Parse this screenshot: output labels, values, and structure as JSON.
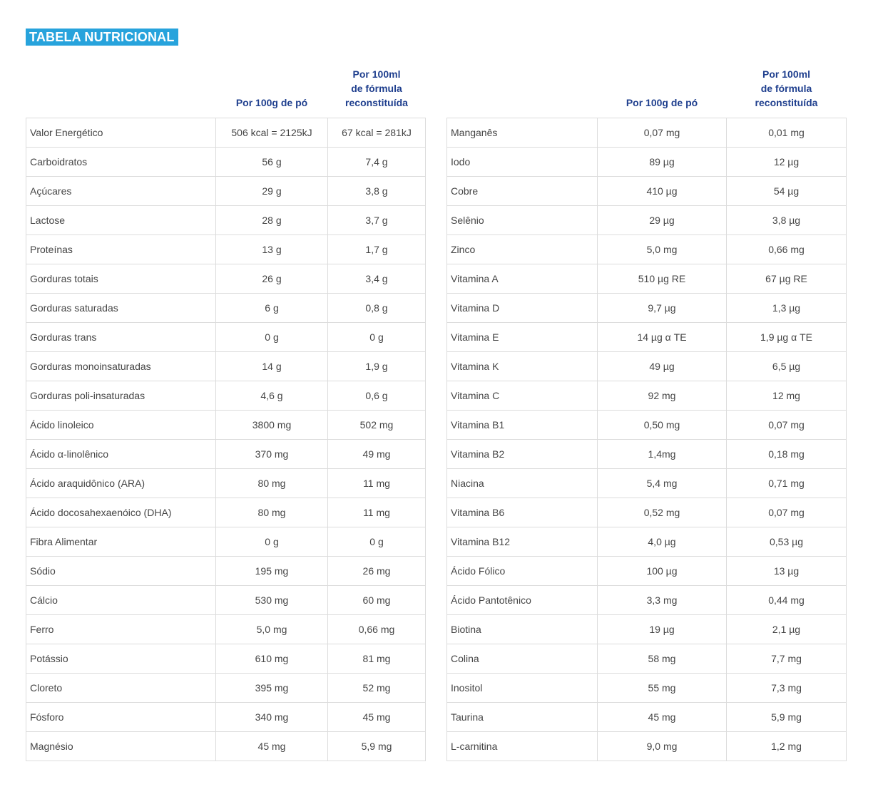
{
  "title": "TABELA NUTRICIONAL",
  "headers": {
    "col1": "Por 100g de pó",
    "col2": [
      "Por 100ml",
      "de fórmula",
      "reconstituída"
    ]
  },
  "left_rows": [
    {
      "name": "Valor Energético",
      "per100g": "506 kcal = 2125kJ",
      "per100ml": "67 kcal = 281kJ"
    },
    {
      "name": "Carboidratos",
      "per100g": "56 g",
      "per100ml": "7,4 g"
    },
    {
      "name": "Açúcares",
      "per100g": "29 g",
      "per100ml": "3,8 g"
    },
    {
      "name": "Lactose",
      "per100g": "28 g",
      "per100ml": "3,7 g"
    },
    {
      "name": "Proteínas",
      "per100g": "13 g",
      "per100ml": "1,7 g"
    },
    {
      "name": "Gorduras totais",
      "per100g": "26 g",
      "per100ml": "3,4 g"
    },
    {
      "name": "Gorduras saturadas",
      "per100g": "6 g",
      "per100ml": "0,8 g"
    },
    {
      "name": "Gorduras trans",
      "per100g": "0 g",
      "per100ml": "0 g"
    },
    {
      "name": "Gorduras monoinsaturadas",
      "per100g": "14 g",
      "per100ml": "1,9 g"
    },
    {
      "name": "Gorduras poli-insaturadas",
      "per100g": "4,6 g",
      "per100ml": "0,6 g"
    },
    {
      "name": "Ácido linoleico",
      "per100g": "3800 mg",
      "per100ml": "502 mg"
    },
    {
      "name": "Ácido α-linolênico",
      "per100g": "370 mg",
      "per100ml": "49 mg"
    },
    {
      "name": "Ácido araquidônico (ARA)",
      "per100g": "80 mg",
      "per100ml": "11 mg"
    },
    {
      "name": "Ácido docosahexaenóico (DHA)",
      "per100g": "80 mg",
      "per100ml": "11 mg"
    },
    {
      "name": "Fibra Alimentar",
      "per100g": "0 g",
      "per100ml": "0 g"
    },
    {
      "name": "Sódio",
      "per100g": "195 mg",
      "per100ml": "26 mg"
    },
    {
      "name": "Cálcio",
      "per100g": "530 mg",
      "per100ml": "60 mg"
    },
    {
      "name": "Ferro",
      "per100g": "5,0 mg",
      "per100ml": "0,66 mg"
    },
    {
      "name": "Potássio",
      "per100g": "610 mg",
      "per100ml": "81 mg"
    },
    {
      "name": "Cloreto",
      "per100g": "395 mg",
      "per100ml": "52 mg"
    },
    {
      "name": "Fósforo",
      "per100g": "340 mg",
      "per100ml": "45 mg"
    },
    {
      "name": "Magnésio",
      "per100g": "45 mg",
      "per100ml": "5,9 mg"
    }
  ],
  "right_rows": [
    {
      "name": "Manganês",
      "per100g": "0,07 mg",
      "per100ml": "0,01 mg"
    },
    {
      "name": "Iodo",
      "per100g": "89 µg",
      "per100ml": "12 µg"
    },
    {
      "name": "Cobre",
      "per100g": "410 µg",
      "per100ml": "54 µg"
    },
    {
      "name": "Selênio",
      "per100g": "29 µg",
      "per100ml": "3,8 µg"
    },
    {
      "name": "Zinco",
      "per100g": "5,0 mg",
      "per100ml": "0,66 mg"
    },
    {
      "name": "Vitamina A",
      "per100g": "510 µg RE",
      "per100ml": "67 µg RE"
    },
    {
      "name": "Vitamina D",
      "per100g": "9,7 µg",
      "per100ml": "1,3 µg"
    },
    {
      "name": "Vitamina E",
      "per100g": "14 µg α TE",
      "per100ml": "1,9 µg α TE"
    },
    {
      "name": "Vitamina K",
      "per100g": "49 µg",
      "per100ml": "6,5 µg"
    },
    {
      "name": "Vitamina C",
      "per100g": "92 mg",
      "per100ml": "12 mg"
    },
    {
      "name": "Vitamina B1",
      "per100g": "0,50 mg",
      "per100ml": "0,07 mg"
    },
    {
      "name": "Vitamina B2",
      "per100g": "1,4mg",
      "per100ml": "0,18 mg"
    },
    {
      "name": "Niacina",
      "per100g": "5,4 mg",
      "per100ml": "0,71 mg"
    },
    {
      "name": "Vitamina B6",
      "per100g": "0,52 mg",
      "per100ml": "0,07 mg"
    },
    {
      "name": "Vitamina B12",
      "per100g": "4,0 µg",
      "per100ml": "0,53 µg"
    },
    {
      "name": "Ácido Fólico",
      "per100g": "100 µg",
      "per100ml": "13 µg"
    },
    {
      "name": "Ácido Pantotênico",
      "per100g": "3,3 mg",
      "per100ml": "0,44 mg"
    },
    {
      "name": "Biotina",
      "per100g": "19 µg",
      "per100ml": "2,1 µg"
    },
    {
      "name": "Colina",
      "per100g": "58 mg",
      "per100ml": "7,7 mg"
    },
    {
      "name": "Inositol",
      "per100g": "55 mg",
      "per100ml": "7,3 mg"
    },
    {
      "name": "Taurina",
      "per100g": "45 mg",
      "per100ml": "5,9 mg"
    },
    {
      "name": "L-carnitina",
      "per100g": "9,0 mg",
      "per100ml": "1,2 mg"
    }
  ],
  "colors": {
    "title_bg": "#27a3dc",
    "header_text": "#1f3f8e",
    "border": "#dcdcdc"
  }
}
